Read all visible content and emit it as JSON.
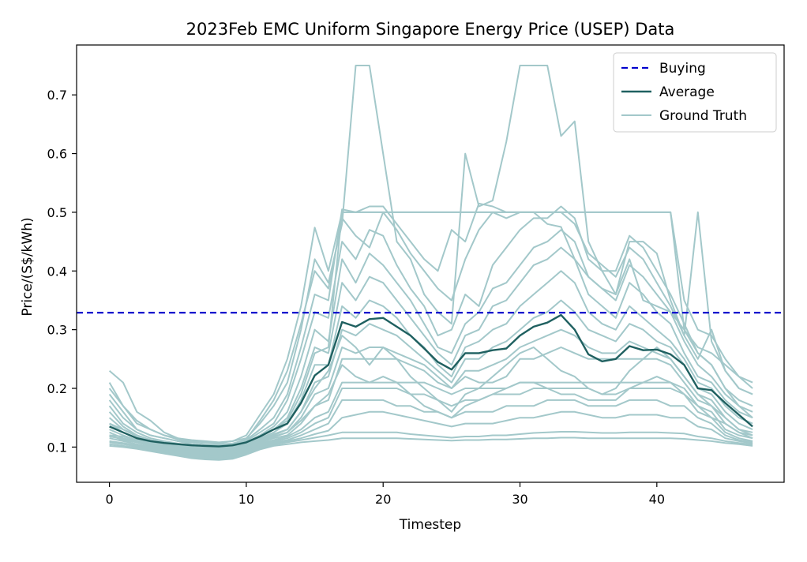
{
  "chart_data": {
    "type": "line",
    "title": "2023Feb EMC Uniform Singapore Energy Price (USEP) Data",
    "xlabel": "Timestep",
    "ylabel": "Price/(S$/kWh)",
    "xlim": [
      -2.4,
      49.3
    ],
    "ylim": [
      0.04,
      0.785
    ],
    "xticks": [
      0,
      10,
      20,
      30,
      40
    ],
    "yticks": [
      0.1,
      0.2,
      0.3,
      0.4,
      0.5,
      0.6,
      0.7
    ],
    "grid": false,
    "legend_position": "top-right",
    "colors": {
      "buying": "#0000cd",
      "average": "#1f6060",
      "ground_truth": "#a3c8ca"
    },
    "buying_price": 0.329,
    "average": [
      0.135,
      0.125,
      0.115,
      0.11,
      0.107,
      0.105,
      0.103,
      0.102,
      0.101,
      0.103,
      0.108,
      0.118,
      0.13,
      0.14,
      0.175,
      0.222,
      0.24,
      0.313,
      0.305,
      0.318,
      0.32,
      0.305,
      0.29,
      0.268,
      0.245,
      0.232,
      0.26,
      0.26,
      0.265,
      0.268,
      0.29,
      0.305,
      0.312,
      0.325,
      0.3,
      0.258,
      0.246,
      0.25,
      0.272,
      0.265,
      0.266,
      0.258,
      0.24,
      0.2,
      0.197,
      0.175,
      0.155,
      0.135
    ],
    "series": [
      {
        "values": [
          0.23,
          0.21,
          0.16,
          0.145,
          0.125,
          0.115,
          0.11,
          0.108,
          0.107,
          0.11,
          0.12,
          0.155,
          0.19,
          0.25,
          0.34,
          0.474,
          0.4,
          0.5,
          0.5,
          0.5,
          0.5,
          0.5,
          0.5,
          0.5,
          0.5,
          0.5,
          0.5,
          0.5,
          0.5,
          0.5,
          0.5,
          0.5,
          0.5,
          0.5,
          0.5,
          0.5,
          0.5,
          0.5,
          0.5,
          0.5,
          0.5,
          0.5,
          0.35,
          0.3,
          0.29,
          0.25,
          0.22,
          0.21
        ]
      },
      {
        "values": [
          0.21,
          0.17,
          0.14,
          0.13,
          0.12,
          0.115,
          0.112,
          0.11,
          0.108,
          0.11,
          0.115,
          0.14,
          0.17,
          0.21,
          0.3,
          0.42,
          0.38,
          0.48,
          0.75,
          0.75,
          0.6,
          0.45,
          0.42,
          0.36,
          0.33,
          0.31,
          0.6,
          0.51,
          0.52,
          0.62,
          0.75,
          0.75,
          0.75,
          0.63,
          0.655,
          0.45,
          0.4,
          0.36,
          0.42,
          0.35,
          0.34,
          0.33,
          0.3,
          0.27,
          0.26,
          0.24,
          0.22,
          0.2
        ]
      },
      {
        "values": [
          0.19,
          0.16,
          0.13,
          0.12,
          0.115,
          0.11,
          0.108,
          0.105,
          0.105,
          0.106,
          0.112,
          0.13,
          0.15,
          0.19,
          0.27,
          0.36,
          0.35,
          0.505,
          0.5,
          0.51,
          0.51,
          0.48,
          0.45,
          0.42,
          0.4,
          0.47,
          0.45,
          0.515,
          0.51,
          0.5,
          0.5,
          0.5,
          0.48,
          0.475,
          0.42,
          0.39,
          0.37,
          0.36,
          0.45,
          0.45,
          0.43,
          0.35,
          0.29,
          0.25,
          0.3,
          0.23,
          0.2,
          0.19
        ]
      },
      {
        "values": [
          0.18,
          0.15,
          0.13,
          0.12,
          0.115,
          0.11,
          0.105,
          0.102,
          0.1,
          0.103,
          0.11,
          0.125,
          0.14,
          0.18,
          0.25,
          0.33,
          0.32,
          0.45,
          0.42,
          0.47,
          0.46,
          0.41,
          0.37,
          0.34,
          0.29,
          0.3,
          0.36,
          0.34,
          0.41,
          0.44,
          0.47,
          0.49,
          0.49,
          0.51,
          0.49,
          0.42,
          0.4,
          0.4,
          0.46,
          0.44,
          0.4,
          0.36,
          0.31,
          0.26,
          0.24,
          0.2,
          0.18,
          0.17
        ]
      },
      {
        "values": [
          0.17,
          0.14,
          0.125,
          0.115,
          0.11,
          0.106,
          0.103,
          0.1,
          0.098,
          0.1,
          0.108,
          0.12,
          0.135,
          0.16,
          0.22,
          0.3,
          0.28,
          0.42,
          0.38,
          0.43,
          0.41,
          0.38,
          0.35,
          0.31,
          0.27,
          0.26,
          0.31,
          0.33,
          0.37,
          0.38,
          0.41,
          0.44,
          0.45,
          0.47,
          0.45,
          0.39,
          0.37,
          0.35,
          0.41,
          0.39,
          0.36,
          0.33,
          0.28,
          0.24,
          0.22,
          0.19,
          0.17,
          0.16
        ]
      },
      {
        "values": [
          0.16,
          0.135,
          0.12,
          0.112,
          0.108,
          0.104,
          0.1,
          0.098,
          0.096,
          0.098,
          0.106,
          0.118,
          0.13,
          0.15,
          0.2,
          0.27,
          0.26,
          0.38,
          0.35,
          0.39,
          0.38,
          0.35,
          0.32,
          0.29,
          0.26,
          0.24,
          0.29,
          0.3,
          0.34,
          0.35,
          0.38,
          0.41,
          0.42,
          0.44,
          0.42,
          0.36,
          0.34,
          0.32,
          0.38,
          0.36,
          0.33,
          0.31,
          0.26,
          0.22,
          0.21,
          0.18,
          0.16,
          0.15
        ]
      },
      {
        "values": [
          0.15,
          0.13,
          0.118,
          0.11,
          0.106,
          0.102,
          0.099,
          0.097,
          0.095,
          0.097,
          0.104,
          0.115,
          0.125,
          0.14,
          0.18,
          0.24,
          0.24,
          0.34,
          0.32,
          0.35,
          0.34,
          0.32,
          0.29,
          0.27,
          0.24,
          0.22,
          0.27,
          0.28,
          0.3,
          0.31,
          0.34,
          0.36,
          0.38,
          0.4,
          0.38,
          0.33,
          0.31,
          0.3,
          0.34,
          0.32,
          0.3,
          0.28,
          0.25,
          0.21,
          0.2,
          0.17,
          0.15,
          0.14
        ]
      },
      {
        "values": [
          0.14,
          0.125,
          0.115,
          0.108,
          0.104,
          0.1,
          0.097,
          0.095,
          0.093,
          0.095,
          0.102,
          0.113,
          0.122,
          0.13,
          0.16,
          0.21,
          0.22,
          0.3,
          0.29,
          0.31,
          0.3,
          0.29,
          0.27,
          0.25,
          0.23,
          0.21,
          0.25,
          0.25,
          0.27,
          0.28,
          0.3,
          0.32,
          0.33,
          0.35,
          0.33,
          0.3,
          0.29,
          0.28,
          0.31,
          0.3,
          0.28,
          0.27,
          0.24,
          0.2,
          0.19,
          0.16,
          0.14,
          0.13
        ]
      },
      {
        "values": [
          0.13,
          0.12,
          0.112,
          0.106,
          0.102,
          0.098,
          0.095,
          0.093,
          0.091,
          0.093,
          0.1,
          0.11,
          0.118,
          0.125,
          0.15,
          0.19,
          0.2,
          0.27,
          0.26,
          0.27,
          0.27,
          0.26,
          0.25,
          0.24,
          0.22,
          0.2,
          0.23,
          0.23,
          0.24,
          0.25,
          0.27,
          0.28,
          0.29,
          0.3,
          0.29,
          0.27,
          0.26,
          0.26,
          0.28,
          0.27,
          0.26,
          0.25,
          0.22,
          0.19,
          0.18,
          0.15,
          0.13,
          0.125
        ]
      },
      {
        "values": [
          0.125,
          0.115,
          0.11,
          0.104,
          0.1,
          0.096,
          0.093,
          0.09,
          0.089,
          0.091,
          0.098,
          0.108,
          0.115,
          0.12,
          0.14,
          0.17,
          0.18,
          0.25,
          0.25,
          0.25,
          0.25,
          0.25,
          0.24,
          0.23,
          0.21,
          0.2,
          0.22,
          0.21,
          0.21,
          0.22,
          0.25,
          0.25,
          0.26,
          0.27,
          0.26,
          0.25,
          0.25,
          0.25,
          0.25,
          0.25,
          0.25,
          0.24,
          0.21,
          0.18,
          0.17,
          0.14,
          0.125,
          0.12
        ]
      },
      {
        "values": [
          0.12,
          0.112,
          0.108,
          0.102,
          0.098,
          0.094,
          0.09,
          0.088,
          0.087,
          0.089,
          0.096,
          0.106,
          0.112,
          0.118,
          0.13,
          0.15,
          0.16,
          0.21,
          0.21,
          0.21,
          0.21,
          0.21,
          0.21,
          0.21,
          0.2,
          0.19,
          0.2,
          0.2,
          0.2,
          0.2,
          0.21,
          0.21,
          0.21,
          0.21,
          0.21,
          0.21,
          0.21,
          0.21,
          0.21,
          0.21,
          0.21,
          0.21,
          0.2,
          0.17,
          0.16,
          0.13,
          0.12,
          0.115
        ]
      },
      {
        "values": [
          0.115,
          0.11,
          0.105,
          0.1,
          0.096,
          0.092,
          0.088,
          0.086,
          0.085,
          0.087,
          0.094,
          0.104,
          0.11,
          0.115,
          0.125,
          0.14,
          0.15,
          0.2,
          0.2,
          0.2,
          0.2,
          0.2,
          0.19,
          0.19,
          0.18,
          0.17,
          0.18,
          0.18,
          0.19,
          0.19,
          0.19,
          0.2,
          0.2,
          0.2,
          0.2,
          0.2,
          0.19,
          0.19,
          0.2,
          0.2,
          0.2,
          0.2,
          0.19,
          0.16,
          0.15,
          0.125,
          0.115,
          0.11
        ]
      },
      {
        "values": [
          0.11,
          0.107,
          0.103,
          0.098,
          0.094,
          0.09,
          0.086,
          0.084,
          0.083,
          0.085,
          0.092,
          0.102,
          0.108,
          0.112,
          0.12,
          0.13,
          0.14,
          0.18,
          0.18,
          0.18,
          0.18,
          0.17,
          0.17,
          0.16,
          0.16,
          0.15,
          0.16,
          0.16,
          0.16,
          0.17,
          0.17,
          0.17,
          0.18,
          0.18,
          0.18,
          0.17,
          0.17,
          0.17,
          0.18,
          0.18,
          0.18,
          0.17,
          0.17,
          0.15,
          0.14,
          0.12,
          0.112,
          0.108
        ]
      },
      {
        "values": [
          0.108,
          0.105,
          0.101,
          0.096,
          0.092,
          0.088,
          0.084,
          0.082,
          0.081,
          0.083,
          0.09,
          0.1,
          0.106,
          0.11,
          0.115,
          0.122,
          0.128,
          0.15,
          0.155,
          0.16,
          0.16,
          0.155,
          0.15,
          0.145,
          0.14,
          0.135,
          0.14,
          0.14,
          0.14,
          0.145,
          0.15,
          0.15,
          0.155,
          0.16,
          0.16,
          0.155,
          0.15,
          0.15,
          0.155,
          0.155,
          0.155,
          0.15,
          0.15,
          0.135,
          0.13,
          0.115,
          0.11,
          0.106
        ]
      },
      {
        "values": [
          0.105,
          0.102,
          0.099,
          0.094,
          0.09,
          0.086,
          0.082,
          0.08,
          0.079,
          0.081,
          0.088,
          0.098,
          0.104,
          0.108,
          0.112,
          0.116,
          0.12,
          0.125,
          0.125,
          0.125,
          0.125,
          0.125,
          0.122,
          0.12,
          0.118,
          0.116,
          0.118,
          0.118,
          0.12,
          0.12,
          0.122,
          0.124,
          0.125,
          0.126,
          0.126,
          0.125,
          0.124,
          0.124,
          0.125,
          0.125,
          0.125,
          0.124,
          0.123,
          0.118,
          0.115,
          0.11,
          0.107,
          0.104
        ]
      },
      {
        "values": [
          0.102,
          0.1,
          0.097,
          0.093,
          0.089,
          0.085,
          0.081,
          0.079,
          0.078,
          0.08,
          0.087,
          0.096,
          0.102,
          0.105,
          0.108,
          0.11,
          0.112,
          0.115,
          0.115,
          0.115,
          0.115,
          0.115,
          0.114,
          0.113,
          0.112,
          0.111,
          0.112,
          0.112,
          0.113,
          0.113,
          0.114,
          0.115,
          0.115,
          0.116,
          0.116,
          0.115,
          0.115,
          0.115,
          0.115,
          0.115,
          0.115,
          0.115,
          0.114,
          0.112,
          0.11,
          0.107,
          0.105,
          0.102
        ]
      },
      {
        "values": [
          0.14,
          0.13,
          0.12,
          0.112,
          0.107,
          0.103,
          0.1,
          0.098,
          0.097,
          0.1,
          0.107,
          0.12,
          0.13,
          0.145,
          0.19,
          0.26,
          0.27,
          0.5,
          0.5,
          0.5,
          0.5,
          0.5,
          0.5,
          0.5,
          0.5,
          0.5,
          0.5,
          0.5,
          0.5,
          0.5,
          0.5,
          0.5,
          0.5,
          0.5,
          0.5,
          0.5,
          0.5,
          0.5,
          0.5,
          0.5,
          0.5,
          0.5,
          0.3,
          0.26,
          0.24,
          0.2,
          0.17,
          0.15
        ]
      },
      {
        "values": [
          0.2,
          0.17,
          0.145,
          0.13,
          0.12,
          0.113,
          0.108,
          0.105,
          0.103,
          0.106,
          0.113,
          0.145,
          0.18,
          0.23,
          0.31,
          0.4,
          0.37,
          0.49,
          0.46,
          0.44,
          0.5,
          0.47,
          0.43,
          0.4,
          0.37,
          0.35,
          0.42,
          0.47,
          0.5,
          0.49,
          0.5,
          0.5,
          0.5,
          0.5,
          0.48,
          0.43,
          0.41,
          0.39,
          0.44,
          0.42,
          0.38,
          0.34,
          0.29,
          0.5,
          0.28,
          0.23,
          0.2,
          0.19
        ]
      },
      {
        "values": [
          0.12,
          0.118,
          0.112,
          0.106,
          0.102,
          0.098,
          0.094,
          0.092,
          0.091,
          0.093,
          0.1,
          0.112,
          0.12,
          0.13,
          0.16,
          0.2,
          0.23,
          0.29,
          0.27,
          0.24,
          0.27,
          0.25,
          0.22,
          0.2,
          0.18,
          0.16,
          0.19,
          0.2,
          0.22,
          0.24,
          0.26,
          0.27,
          0.25,
          0.23,
          0.22,
          0.2,
          0.19,
          0.2,
          0.23,
          0.25,
          0.27,
          0.25,
          0.22,
          0.19,
          0.17,
          0.15,
          0.13,
          0.12
        ]
      },
      {
        "values": [
          0.118,
          0.114,
          0.108,
          0.103,
          0.099,
          0.095,
          0.092,
          0.09,
          0.089,
          0.091,
          0.098,
          0.11,
          0.117,
          0.125,
          0.145,
          0.17,
          0.19,
          0.24,
          0.22,
          0.21,
          0.22,
          0.21,
          0.19,
          0.17,
          0.16,
          0.15,
          0.17,
          0.18,
          0.19,
          0.2,
          0.21,
          0.21,
          0.2,
          0.19,
          0.19,
          0.18,
          0.18,
          0.18,
          0.2,
          0.21,
          0.22,
          0.21,
          0.19,
          0.17,
          0.15,
          0.14,
          0.125,
          0.115
        ]
      }
    ],
    "legend": [
      {
        "label": "Buying",
        "style": "dashed"
      },
      {
        "label": "Average",
        "style": "solid"
      },
      {
        "label": "Ground Truth",
        "style": "solid"
      }
    ]
  }
}
